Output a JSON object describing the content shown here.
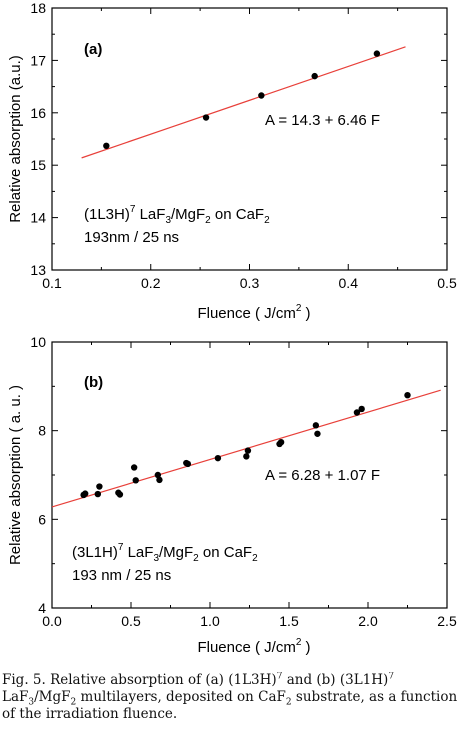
{
  "chart_data": [
    {
      "type": "scatter",
      "panel_label": "(a)",
      "xlabel": "Fluence ( J/cm",
      "xlabel_sup": "2",
      "xlabel_close": " )",
      "ylabel": "Relative absorption (a.u.)",
      "xlim": [
        0.1,
        0.5
      ],
      "ylim": [
        13,
        18
      ],
      "xticks": [
        "0.1",
        "0.2",
        "0.3",
        "0.4",
        "0.5"
      ],
      "yticks": [
        "13",
        "14",
        "15",
        "16",
        "17",
        "18"
      ],
      "points": [
        [
          0.155,
          15.37
        ],
        [
          0.256,
          15.91
        ],
        [
          0.312,
          16.33
        ],
        [
          0.366,
          16.7
        ],
        [
          0.429,
          17.13
        ]
      ],
      "fit": {
        "intercept": 14.3,
        "slope": 6.46,
        "x_range": [
          0.13,
          0.458
        ],
        "color": "#e8403a"
      },
      "equation": "A = 14.3 + 6.46 F",
      "sample_line1_prefix": "(1L3H)",
      "sample_line1_sup": "7",
      "sample_line1_mid": " LaF",
      "sample_line1_sub1": "3",
      "sample_line1_mid2": "/MgF",
      "sample_line1_sub2": "2",
      "sample_line1_suffix": " on CaF",
      "sample_line1_sub3": "2",
      "sample_line2": "193nm / 25 ns"
    },
    {
      "type": "scatter",
      "panel_label": "(b)",
      "xlabel": "Fluence  ( J/cm",
      "xlabel_sup": "2",
      "xlabel_close": " )",
      "ylabel": "Relative absorption  ( a. u. )",
      "xlim": [
        0.0,
        2.5
      ],
      "ylim": [
        4,
        10
      ],
      "xticks": [
        "0.0",
        "0.5",
        "1.0",
        "1.5",
        "2.0",
        "2.5"
      ],
      "yticks": [
        "4",
        "6",
        "8",
        "10"
      ],
      "points": [
        [
          0.2,
          6.55
        ],
        [
          0.21,
          6.58
        ],
        [
          0.29,
          6.57
        ],
        [
          0.3,
          6.74
        ],
        [
          0.42,
          6.6
        ],
        [
          0.43,
          6.56
        ],
        [
          0.52,
          7.17
        ],
        [
          0.53,
          6.88
        ],
        [
          0.67,
          7.0
        ],
        [
          0.68,
          6.89
        ],
        [
          0.85,
          7.27
        ],
        [
          0.86,
          7.25
        ],
        [
          1.05,
          7.38
        ],
        [
          1.23,
          7.42
        ],
        [
          1.24,
          7.55
        ],
        [
          1.44,
          7.7
        ],
        [
          1.45,
          7.74
        ],
        [
          1.67,
          8.12
        ],
        [
          1.68,
          7.93
        ],
        [
          1.93,
          8.41
        ],
        [
          1.96,
          8.49
        ],
        [
          2.25,
          8.8
        ]
      ],
      "fit": {
        "intercept": 6.28,
        "slope": 1.07,
        "x_range": [
          0.0,
          2.46
        ],
        "color": "#e8403a"
      },
      "equation": "A = 6.28 + 1.07 F",
      "sample_line1_prefix": "(3L1H)",
      "sample_line1_sup": "7",
      "sample_line1_mid": " LaF",
      "sample_line1_sub1": "3",
      "sample_line1_mid2": "/MgF",
      "sample_line1_sub2": "2",
      "sample_line1_suffix": " on CaF",
      "sample_line1_sub3": "2",
      "sample_line2": "193 nm / 25 ns"
    }
  ],
  "caption": {
    "part1": "Fig. 5. Relative absorption of (a) (1L3H)",
    "sup1": "7",
    "part2": " and (b) (3L1H)",
    "sup2": "7",
    "part3": " LaF",
    "sub1": "3",
    "part4": "/MgF",
    "sub2": "2",
    "part5": " multilayers, deposited on CaF",
    "sub3": "2",
    "part6": " substrate, as a function of the irradiation fluence."
  }
}
